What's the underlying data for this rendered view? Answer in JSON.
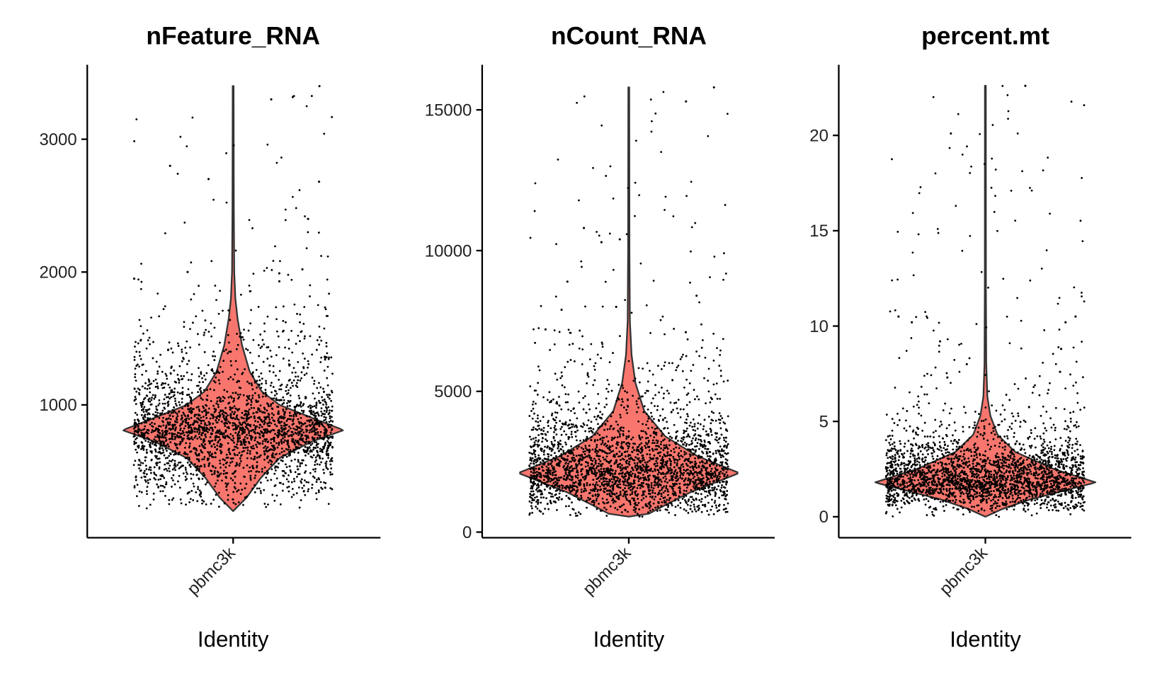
{
  "chart_data": [
    {
      "type": "violin",
      "title": "nFeature_RNA",
      "xlabel": "Identity",
      "ylabel": "",
      "categories": [
        "pbmc3k"
      ],
      "ylim": [
        0,
        3560
      ],
      "yticks": [
        1000,
        2000,
        3000
      ],
      "ytick_labels": [
        "1000",
        "2000",
        "3000"
      ],
      "min": 200,
      "max": 3400,
      "density_profile": [
        [
          200,
          0
        ],
        [
          300,
          0.12
        ],
        [
          450,
          0.25
        ],
        [
          600,
          0.42
        ],
        [
          720,
          0.7
        ],
        [
          810,
          1.0
        ],
        [
          900,
          0.72
        ],
        [
          1000,
          0.42
        ],
        [
          1100,
          0.26
        ],
        [
          1250,
          0.15
        ],
        [
          1450,
          0.08
        ],
        [
          1650,
          0.04
        ],
        [
          1800,
          0.02
        ],
        [
          2000,
          0.01
        ],
        [
          2500,
          0.006
        ],
        [
          3400,
          0.004
        ]
      ],
      "outliers": [
        3400,
        3300,
        2800,
        2700,
        2680,
        2400,
        2020,
        2000,
        1990,
        1950,
        1930
      ]
    },
    {
      "type": "violin",
      "title": "nCount_RNA",
      "xlabel": "Identity",
      "ylabel": "",
      "categories": [
        "pbmc3k"
      ],
      "ylim": [
        -200,
        16600
      ],
      "yticks": [
        0,
        5000,
        10000,
        15000
      ],
      "ytick_labels": [
        "0",
        "5000",
        "10000",
        "15000"
      ],
      "min": 550,
      "max": 15800,
      "density_profile": [
        [
          550,
          0
        ],
        [
          650,
          0.18
        ],
        [
          900,
          0.3
        ],
        [
          1400,
          0.55
        ],
        [
          2100,
          1.0
        ],
        [
          2700,
          0.62
        ],
        [
          3400,
          0.33
        ],
        [
          4300,
          0.14
        ],
        [
          5300,
          0.06
        ],
        [
          6300,
          0.025
        ],
        [
          7500,
          0.01
        ],
        [
          10000,
          0.006
        ],
        [
          15800,
          0.004
        ]
      ],
      "outliers": [
        15800,
        15300,
        10800,
        10400,
        10300,
        8900,
        8400,
        8000,
        7900,
        7200,
        7100
      ]
    },
    {
      "type": "violin",
      "title": "percent.mt",
      "xlabel": "Identity",
      "ylabel": "",
      "categories": [
        "pbmc3k"
      ],
      "ylim": [
        -1.1,
        23.7
      ],
      "yticks": [
        0,
        5,
        10,
        15,
        20
      ],
      "ytick_labels": [
        "0",
        "5",
        "10",
        "15",
        "20"
      ],
      "min": 0,
      "max": 22.6,
      "density_profile": [
        [
          0,
          0
        ],
        [
          0.4,
          0.15
        ],
        [
          0.9,
          0.4
        ],
        [
          1.8,
          1.0
        ],
        [
          2.5,
          0.62
        ],
        [
          3.4,
          0.27
        ],
        [
          4.3,
          0.11
        ],
        [
          5.3,
          0.045
        ],
        [
          6.3,
          0.018
        ],
        [
          8,
          0.008
        ],
        [
          12,
          0.005
        ],
        [
          22.6,
          0.004
        ]
      ],
      "outliers": [
        22.6,
        20.1,
        10.5,
        10.5,
        10.2,
        10.2,
        9.2,
        8.8,
        8.0,
        7.6,
        7.3
      ]
    }
  ],
  "colors": {
    "violin_fill": "#F8766D",
    "violin_outline": "#333333",
    "points": "#000000",
    "axis": "#000000"
  }
}
